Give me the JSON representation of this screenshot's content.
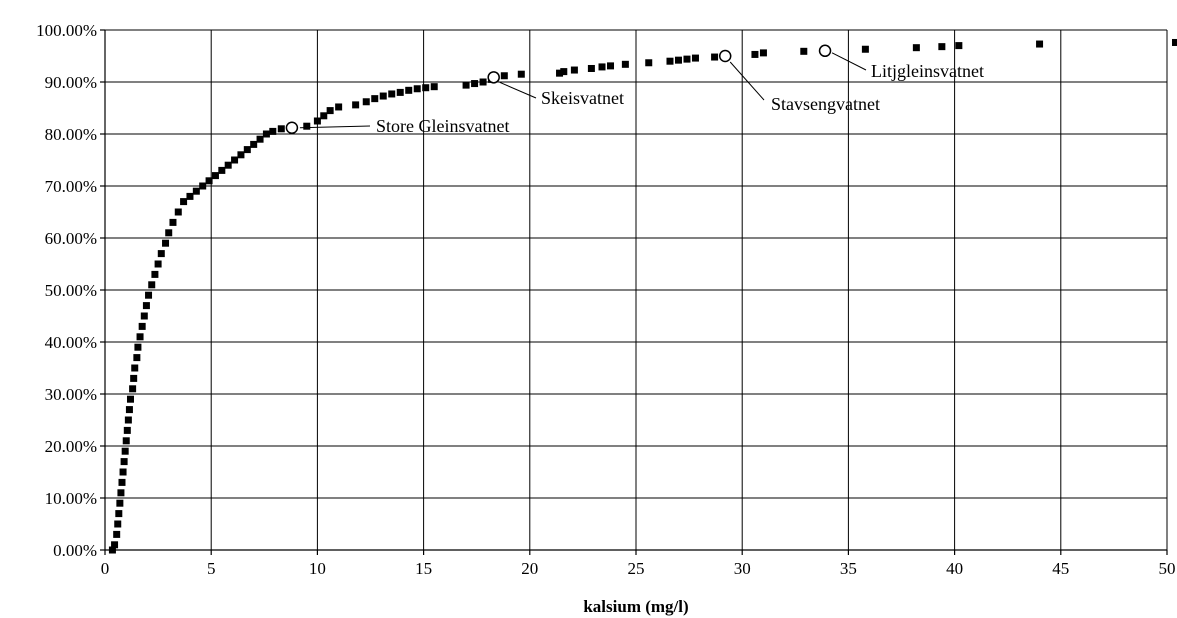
{
  "chart_data": {
    "type": "scatter",
    "title": "",
    "xlabel": "kalsium (mg/l)",
    "ylabel": "",
    "xlim": [
      0,
      50
    ],
    "ylim": [
      0,
      1
    ],
    "x_ticks": [
      0,
      5,
      10,
      15,
      20,
      25,
      30,
      35,
      40,
      45,
      50
    ],
    "x_tick_labels": [
      "0",
      "5",
      "10",
      "15",
      "20",
      "25",
      "30",
      "35",
      "40",
      "45",
      "50"
    ],
    "y_ticks": [
      0,
      0.1,
      0.2,
      0.3,
      0.4,
      0.5,
      0.6,
      0.7,
      0.8,
      0.9,
      1.0
    ],
    "y_tick_labels": [
      "0.00%",
      "10.00%",
      "20.00%",
      "30.00%",
      "40.00%",
      "50.00%",
      "60.00%",
      "70.00%",
      "80.00%",
      "90.00%",
      "100.00%"
    ],
    "grid": true,
    "series": [
      {
        "marker": "square",
        "color": "#000000",
        "points": [
          [
            0.35,
            0.0
          ],
          [
            0.45,
            0.01
          ],
          [
            0.55,
            0.03
          ],
          [
            0.6,
            0.05
          ],
          [
            0.65,
            0.07
          ],
          [
            0.7,
            0.09
          ],
          [
            0.75,
            0.11
          ],
          [
            0.8,
            0.13
          ],
          [
            0.85,
            0.15
          ],
          [
            0.9,
            0.17
          ],
          [
            0.95,
            0.19
          ],
          [
            1.0,
            0.21
          ],
          [
            1.05,
            0.23
          ],
          [
            1.1,
            0.25
          ],
          [
            1.15,
            0.27
          ],
          [
            1.2,
            0.29
          ],
          [
            1.3,
            0.31
          ],
          [
            1.35,
            0.33
          ],
          [
            1.4,
            0.35
          ],
          [
            1.5,
            0.37
          ],
          [
            1.55,
            0.39
          ],
          [
            1.65,
            0.41
          ],
          [
            1.75,
            0.43
          ],
          [
            1.85,
            0.45
          ],
          [
            1.95,
            0.47
          ],
          [
            2.05,
            0.49
          ],
          [
            2.2,
            0.51
          ],
          [
            2.35,
            0.53
          ],
          [
            2.5,
            0.55
          ],
          [
            2.65,
            0.57
          ],
          [
            2.85,
            0.59
          ],
          [
            3.0,
            0.61
          ],
          [
            3.2,
            0.63
          ],
          [
            3.45,
            0.65
          ],
          [
            3.7,
            0.67
          ],
          [
            4.0,
            0.68
          ],
          [
            4.3,
            0.69
          ],
          [
            4.6,
            0.7
          ],
          [
            4.9,
            0.71
          ],
          [
            5.2,
            0.72
          ],
          [
            5.5,
            0.73
          ],
          [
            5.8,
            0.74
          ],
          [
            6.1,
            0.75
          ],
          [
            6.4,
            0.76
          ],
          [
            6.7,
            0.77
          ],
          [
            7.0,
            0.78
          ],
          [
            7.3,
            0.79
          ],
          [
            7.6,
            0.8
          ],
          [
            7.9,
            0.805
          ],
          [
            8.3,
            0.81
          ],
          [
            9.5,
            0.815
          ],
          [
            10.0,
            0.825
          ],
          [
            10.3,
            0.835
          ],
          [
            10.6,
            0.845
          ],
          [
            11.0,
            0.852
          ],
          [
            11.8,
            0.856
          ],
          [
            12.3,
            0.862
          ],
          [
            12.7,
            0.868
          ],
          [
            13.1,
            0.873
          ],
          [
            13.5,
            0.877
          ],
          [
            13.9,
            0.88
          ],
          [
            14.3,
            0.884
          ],
          [
            14.7,
            0.887
          ],
          [
            15.1,
            0.889
          ],
          [
            15.5,
            0.891
          ],
          [
            17.0,
            0.894
          ],
          [
            17.4,
            0.897
          ],
          [
            17.8,
            0.9
          ],
          [
            18.2,
            0.905
          ],
          [
            18.8,
            0.912
          ],
          [
            19.6,
            0.915
          ],
          [
            21.4,
            0.917
          ],
          [
            21.6,
            0.92
          ],
          [
            22.1,
            0.923
          ],
          [
            22.9,
            0.926
          ],
          [
            23.4,
            0.929
          ],
          [
            23.8,
            0.931
          ],
          [
            24.5,
            0.934
          ],
          [
            25.6,
            0.937
          ],
          [
            26.6,
            0.94
          ],
          [
            27.0,
            0.942
          ],
          [
            27.4,
            0.944
          ],
          [
            27.8,
            0.946
          ],
          [
            28.7,
            0.948
          ],
          [
            30.6,
            0.953
          ],
          [
            31.0,
            0.956
          ],
          [
            32.9,
            0.959
          ],
          [
            35.8,
            0.963
          ],
          [
            38.2,
            0.966
          ],
          [
            39.4,
            0.968
          ],
          [
            40.2,
            0.97
          ],
          [
            44.0,
            0.973
          ],
          [
            50.4,
            0.976
          ]
        ]
      }
    ],
    "annotations": [
      {
        "label": "Store Gleinsvatnet",
        "x": 8.8,
        "y": 0.812
      },
      {
        "label": "Skeisvatnet",
        "x": 18.3,
        "y": 0.909
      },
      {
        "label": "Stavsengvatnet",
        "x": 29.2,
        "y": 0.95
      },
      {
        "label": "Litjgleinsvatnet",
        "x": 33.9,
        "y": 0.96
      }
    ]
  }
}
